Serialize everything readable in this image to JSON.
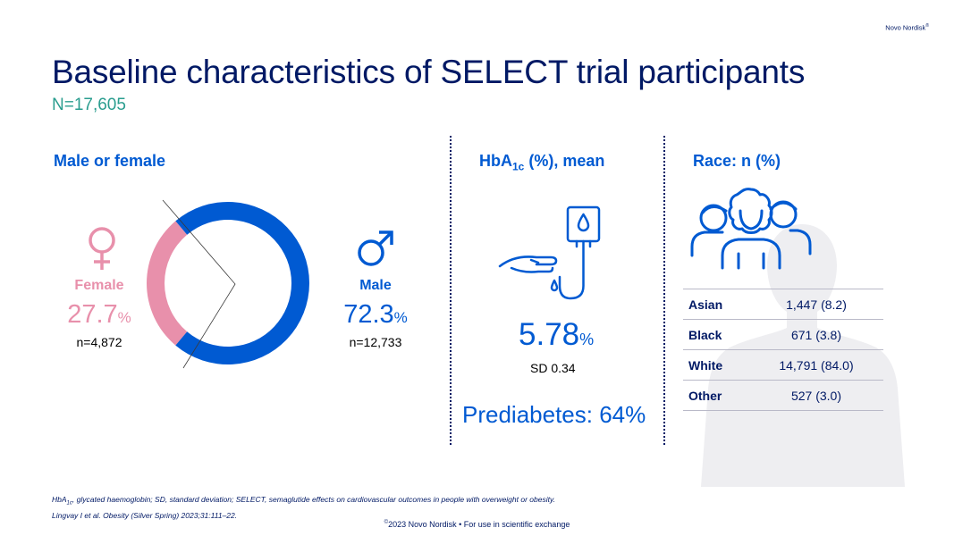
{
  "brand": {
    "name": "Novo Nordisk",
    "mark": "®"
  },
  "title": "Baseline characteristics of SELECT trial participants",
  "n_label": "N=17,605",
  "sex": {
    "heading": "Male or female",
    "female": {
      "label": "Female",
      "percent": "27.7",
      "unit": "%",
      "count": "n=4,872",
      "color": "#e890ab"
    },
    "male": {
      "label": "Male",
      "percent": "72.3",
      "unit": "%",
      "count": "n=12,733",
      "color": "#005ad2"
    }
  },
  "chart_data": {
    "type": "pie",
    "labels": [
      "Female",
      "Male"
    ],
    "values": [
      27.7,
      72.3
    ],
    "colors": [
      "#e890ab",
      "#005ad2"
    ]
  },
  "hba1c": {
    "heading_main": "HbA",
    "heading_sub": "1c",
    "heading_rest": " (%), mean",
    "value": "5.78",
    "unit": "%",
    "sd": "SD 0.34",
    "prediabetes": "Prediabetes: 64%"
  },
  "race": {
    "heading": "Race: n (%)",
    "rows": [
      {
        "label": "Asian",
        "value": "1,447 (8.2)"
      },
      {
        "label": "Black",
        "value": "671 (3.8)"
      },
      {
        "label": "White",
        "value": "14,791 (84.0)"
      },
      {
        "label": "Other",
        "value": "527 (3.0)"
      }
    ]
  },
  "footnote": {
    "abbr_main": "HbA",
    "abbr_sub": "1c",
    "abbr_rest": ", glycated haemoglobin; SD, standard deviation; SELECT, semaglutide effects on cardiovascular outcomes in people with overweight or obesity.",
    "reference": "Lingvay I et al. Obesity (Silver Spring) 2023;31:111–22."
  },
  "copyright": {
    "mark": "©",
    "text": "2023 Novo Nordisk • For use in scientific exchange"
  },
  "icons": [
    "female-symbol-icon",
    "male-symbol-icon",
    "glucose-meter-icon",
    "people-group-icon",
    "person-silhouette-icon"
  ]
}
